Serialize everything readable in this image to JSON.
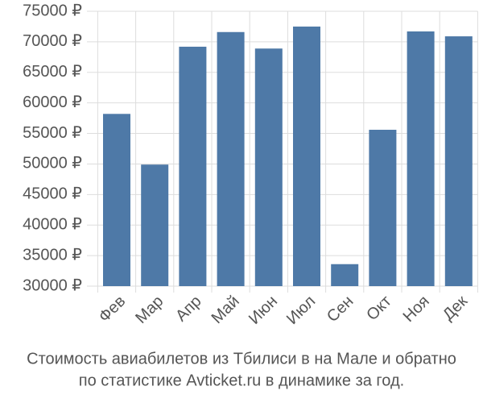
{
  "chart_data": {
    "type": "bar",
    "title": [
      "Стоимость авиабилетов из Тбилиси в на Мале и обратно",
      "по статистике Avticket.ru в динамике за год."
    ],
    "categories": [
      "Фев",
      "Мар",
      "Апр",
      "Май",
      "Июн",
      "Июл",
      "Сен",
      "Окт",
      "Ноя",
      "Дек"
    ],
    "values": [
      58200,
      49900,
      69200,
      71600,
      68900,
      72500,
      33600,
      55600,
      71700,
      70900
    ],
    "color": "#4e79a7",
    "ylim": [
      30000,
      75000
    ],
    "yticks": [
      {
        "value": 30000,
        "label": "30000 ₽"
      },
      {
        "value": 35000,
        "label": "35000 ₽"
      },
      {
        "value": 40000,
        "label": "40000 ₽"
      },
      {
        "value": 45000,
        "label": "45000 ₽"
      },
      {
        "value": 50000,
        "label": "50000 ₽"
      },
      {
        "value": 55000,
        "label": "55000 ₽"
      },
      {
        "value": 60000,
        "label": "60000 ₽"
      },
      {
        "value": 65000,
        "label": "65000 ₽"
      },
      {
        "value": 70000,
        "label": "70000 ₽"
      },
      {
        "value": 75000,
        "label": "75000 ₽"
      }
    ],
    "grid": true
  }
}
